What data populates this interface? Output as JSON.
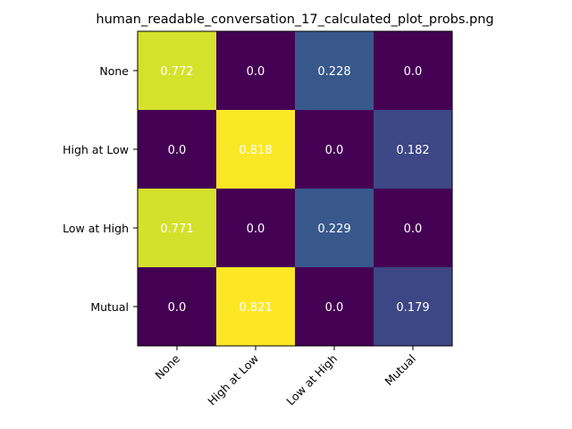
{
  "chart_data": {
    "type": "heatmap",
    "title": "human_readable_conversation_17_calculated_plot_probs.png",
    "x_categories": [
      "None",
      "High at Low",
      "Low at High",
      "Mutual"
    ],
    "y_categories": [
      "None",
      "High at Low",
      "Low at High",
      "Mutual"
    ],
    "values": [
      [
        0.772,
        0.0,
        0.228,
        0.0
      ],
      [
        0.0,
        0.818,
        0.0,
        0.182
      ],
      [
        0.771,
        0.0,
        0.229,
        0.0
      ],
      [
        0.0,
        0.821,
        0.0,
        0.179
      ]
    ],
    "value_labels": [
      [
        "0.772",
        "0.0",
        "0.228",
        "0.0"
      ],
      [
        "0.0",
        "0.818",
        "0.0",
        "0.182"
      ],
      [
        "0.771",
        "0.0",
        "0.229",
        "0.0"
      ],
      [
        "0.0",
        "0.821",
        "0.0",
        "0.179"
      ]
    ],
    "colormap": "viridis",
    "annotation_color": "#ffffff",
    "frame_color": "#000000",
    "xlabel": "",
    "ylabel": ""
  }
}
